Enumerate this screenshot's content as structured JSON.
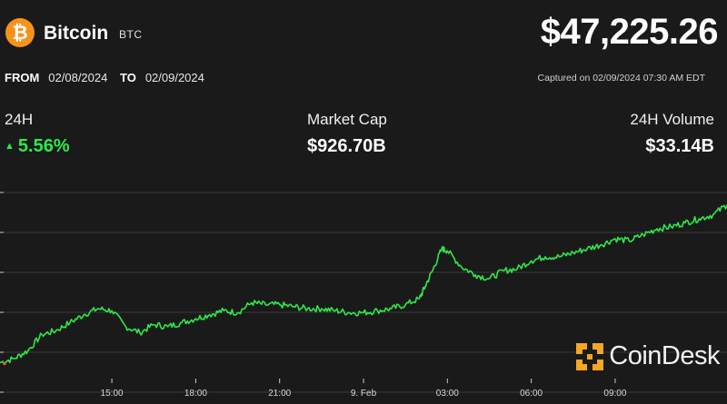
{
  "header": {
    "coin_initial": "₿",
    "coin_name": "Bitcoin",
    "coin_symbol": "BTC",
    "price": "$47,225.26"
  },
  "range": {
    "from_label": "FROM",
    "from_date": "02/08/2024",
    "to_label": "TO",
    "to_date": "02/09/2024",
    "captured": "Captured on 02/09/2024 07:30 AM EDT"
  },
  "stats": {
    "change_label": "24H",
    "change_value": "5.56%",
    "market_cap_label": "Market Cap",
    "market_cap_value": "$926.70B",
    "volume_label": "24H Volume",
    "volume_value": "$33.14B"
  },
  "brand": {
    "name": "CoinDesk"
  },
  "colors": {
    "background": "#1a1a1a",
    "line": "#2ee84a",
    "grid": "#3a3a3a",
    "bitcoin_orange": "#f7931a",
    "brand_orange": "#f5a623"
  },
  "chart_data": {
    "type": "line",
    "title": "",
    "xlabel": "",
    "ylabel": "",
    "x_ticks": [
      "15:00",
      "18:00",
      "21:00",
      "9. Feb",
      "03:00",
      "06:00",
      "09:00"
    ],
    "x_tick_hours": [
      3,
      6,
      9,
      12,
      15,
      18,
      21
    ],
    "x_range_hours": [
      -1,
      25
    ],
    "y_range": [
      0,
      100
    ],
    "grid": "horizontal",
    "series": [
      {
        "x": [
          -1,
          -0.5,
          0,
          0.5,
          1,
          1.5,
          2,
          2.5,
          3,
          3.5,
          4,
          4.5,
          5,
          5.5,
          6,
          6.5,
          7,
          7.5,
          8,
          8.5,
          9,
          9.5,
          10,
          10.5,
          11,
          11.5,
          12,
          12.5,
          13,
          13.5,
          14,
          14.2,
          14.5,
          14.8,
          15,
          15.5,
          16,
          16.5,
          17,
          17.5,
          18,
          18.5,
          19,
          19.5,
          20,
          20.5,
          21,
          21.5,
          22,
          22.5,
          23,
          23.5,
          24,
          24.5,
          25
        ],
        "values": [
          8,
          10,
          14,
          22,
          24,
          28,
          32,
          35,
          34,
          26,
          23,
          27,
          26,
          28,
          30,
          32,
          34,
          33,
          38,
          37,
          37,
          36,
          35,
          35,
          34,
          33,
          33,
          34,
          35,
          37,
          40,
          46,
          55,
          65,
          64,
          56,
          52,
          50,
          54,
          55,
          59,
          61,
          61,
          63,
          65,
          67,
          70,
          69,
          72,
          75,
          76,
          78,
          80,
          82,
          87
        ]
      }
    ]
  }
}
